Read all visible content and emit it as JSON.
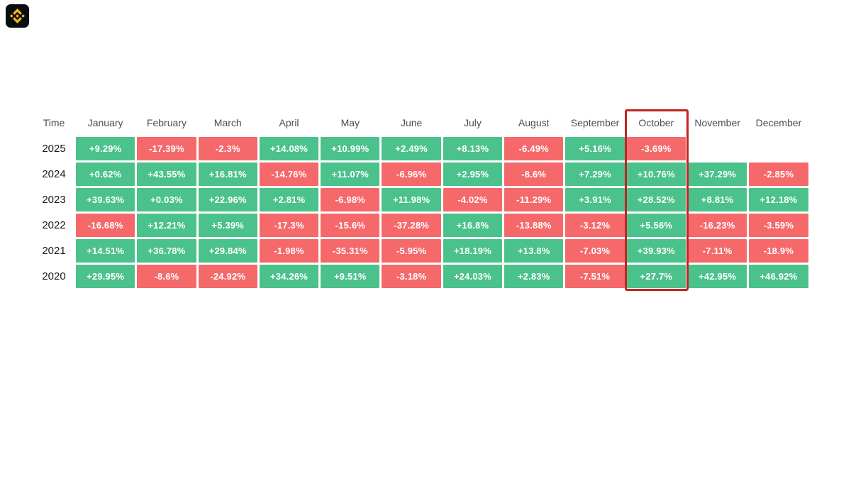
{
  "page": {
    "background": "#FFFFFF"
  },
  "logo": {
    "label": "binance-logo",
    "background": "#0B0E11",
    "glyph_color": "#F0B90B"
  },
  "colors": {
    "positive": "#4BC18B",
    "negative": "#F5696B",
    "highlight_border": "#C12420",
    "header_text": "#474D57",
    "year_text": "#17191D",
    "cell_text": "#FFFFFF"
  },
  "table": {
    "corner_label": "Time",
    "months": [
      "January",
      "February",
      "March",
      "April",
      "May",
      "June",
      "July",
      "August",
      "September",
      "October",
      "November",
      "December"
    ],
    "highlighted_column": "October",
    "rows": [
      {
        "year": "2025",
        "values": [
          "+9.29%",
          "-17.39%",
          "-2.3%",
          "+14.08%",
          "+10.99%",
          "+2.49%",
          "+8.13%",
          "-6.49%",
          "+5.16%",
          "-3.69%",
          null,
          null
        ]
      },
      {
        "year": "2024",
        "values": [
          "+0.62%",
          "+43.55%",
          "+16.81%",
          "-14.76%",
          "+11.07%",
          "-6.96%",
          "+2.95%",
          "-8.6%",
          "+7.29%",
          "+10.76%",
          "+37.29%",
          "-2.85%"
        ]
      },
      {
        "year": "2023",
        "values": [
          "+39.63%",
          "+0.03%",
          "+22.96%",
          "+2.81%",
          "-6.98%",
          "+11.98%",
          "-4.02%",
          "-11.29%",
          "+3.91%",
          "+28.52%",
          "+8.81%",
          "+12.18%"
        ]
      },
      {
        "year": "2022",
        "values": [
          "-16.68%",
          "+12.21%",
          "+5.39%",
          "-17.3%",
          "-15.6%",
          "-37.28%",
          "+16.8%",
          "-13.88%",
          "-3.12%",
          "+5.56%",
          "-16.23%",
          "-3.59%"
        ]
      },
      {
        "year": "2021",
        "values": [
          "+14.51%",
          "+36.78%",
          "+29.84%",
          "-1.98%",
          "-35.31%",
          "-5.95%",
          "+18.19%",
          "+13.8%",
          "-7.03%",
          "+39.93%",
          "-7.11%",
          "-18.9%"
        ]
      },
      {
        "year": "2020",
        "values": [
          "+29.95%",
          "-8.6%",
          "-24.92%",
          "+34.26%",
          "+9.51%",
          "-3.18%",
          "+24.03%",
          "+2.83%",
          "-7.51%",
          "+27.7%",
          "+42.95%",
          "+46.92%"
        ]
      }
    ]
  },
  "chart_data": {
    "type": "heatmap",
    "title": "",
    "x_labels": [
      "January",
      "February",
      "March",
      "April",
      "May",
      "June",
      "July",
      "August",
      "September",
      "October",
      "November",
      "December"
    ],
    "y_labels": [
      "2025",
      "2024",
      "2023",
      "2022",
      "2021",
      "2020"
    ],
    "unit": "%",
    "values": [
      [
        9.29,
        -17.39,
        -2.3,
        14.08,
        10.99,
        2.49,
        8.13,
        -6.49,
        5.16,
        -3.69,
        null,
        null
      ],
      [
        0.62,
        43.55,
        16.81,
        -14.76,
        11.07,
        -6.96,
        2.95,
        -8.6,
        7.29,
        10.76,
        37.29,
        -2.85
      ],
      [
        39.63,
        0.03,
        22.96,
        2.81,
        -6.98,
        11.98,
        -4.02,
        -11.29,
        3.91,
        28.52,
        8.81,
        12.18
      ],
      [
        -16.68,
        12.21,
        5.39,
        -17.3,
        -15.6,
        -37.28,
        16.8,
        -13.88,
        -3.12,
        5.56,
        -16.23,
        -3.59
      ],
      [
        14.51,
        36.78,
        29.84,
        -1.98,
        -35.31,
        -5.95,
        18.19,
        13.8,
        -7.03,
        39.93,
        -7.11,
        -18.9
      ],
      [
        29.95,
        -8.6,
        -24.92,
        34.26,
        9.51,
        -3.18,
        24.03,
        2.83,
        -7.51,
        27.7,
        42.95,
        46.92
      ]
    ],
    "positive_color": "#4BC18B",
    "negative_color": "#F5696B",
    "legend": "off",
    "grid": "off",
    "highlighted_column": "October"
  }
}
